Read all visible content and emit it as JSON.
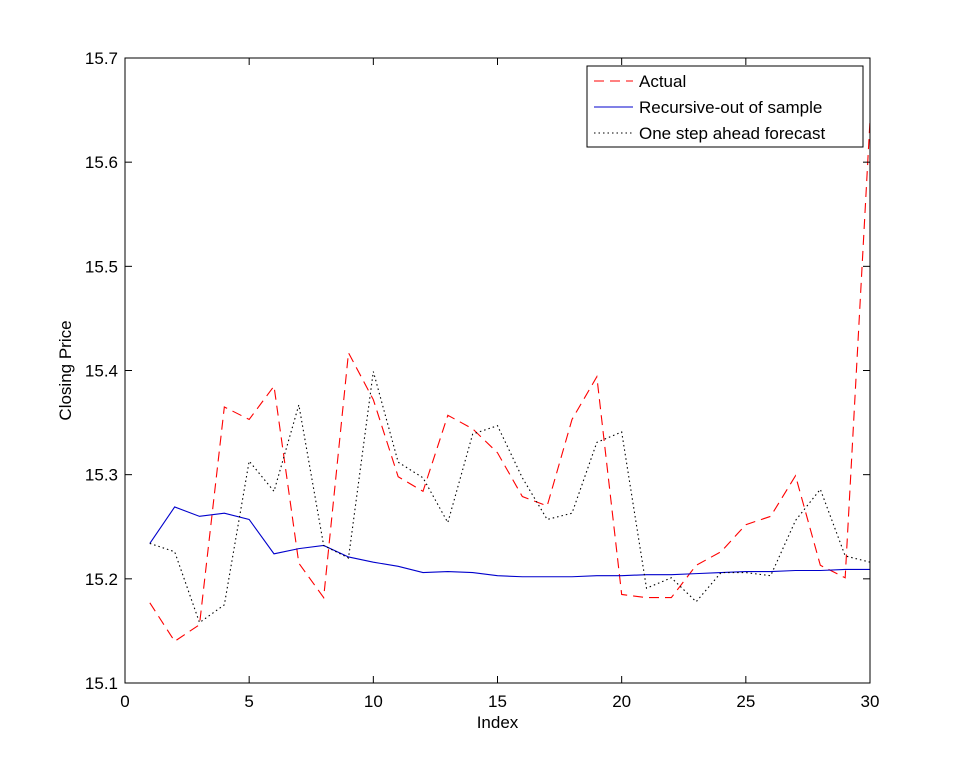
{
  "chart_data": {
    "type": "line",
    "title": "",
    "xlabel": "Index",
    "ylabel": "Closing Price",
    "xlim": [
      0,
      30
    ],
    "ylim": [
      15.1,
      15.7
    ],
    "xticks": [
      0,
      5,
      10,
      15,
      20,
      25,
      30
    ],
    "yticks": [
      15.1,
      15.2,
      15.3,
      15.4,
      15.5,
      15.6,
      15.7
    ],
    "xtick_labels": [
      "0",
      "5",
      "10",
      "15",
      "20",
      "25",
      "30"
    ],
    "ytick_labels": [
      "15.1",
      "15.2",
      "15.3",
      "15.4",
      "15.5",
      "15.6",
      "15.7"
    ],
    "grid": false,
    "legend_position": "top-right",
    "x": [
      1,
      2,
      3,
      4,
      5,
      6,
      7,
      8,
      9,
      10,
      11,
      12,
      13,
      14,
      15,
      16,
      17,
      18,
      19,
      20,
      21,
      22,
      23,
      24,
      25,
      26,
      27,
      28,
      29,
      30
    ],
    "series": [
      {
        "name": "Actual",
        "color": "#ff0000",
        "style": "dashed",
        "values": [
          15.177,
          15.14,
          15.156,
          15.365,
          15.353,
          15.385,
          15.215,
          15.182,
          15.417,
          15.372,
          15.298,
          15.284,
          15.357,
          15.344,
          15.321,
          15.279,
          15.27,
          15.353,
          15.394,
          15.185,
          15.182,
          15.182,
          15.213,
          15.226,
          15.252,
          15.26,
          15.299,
          15.213,
          15.201,
          15.64
        ]
      },
      {
        "name": "Recursive-out of sample",
        "color": "#0000cc",
        "style": "solid",
        "values": [
          15.234,
          15.269,
          15.26,
          15.263,
          15.257,
          15.224,
          15.229,
          15.232,
          15.221,
          15.216,
          15.212,
          15.206,
          15.207,
          15.206,
          15.203,
          15.202,
          15.202,
          15.202,
          15.203,
          15.203,
          15.204,
          15.204,
          15.205,
          15.206,
          15.207,
          15.207,
          15.208,
          15.208,
          15.209,
          15.209
        ]
      },
      {
        "name": "One step ahead forecast",
        "color": "#000000",
        "style": "dotted",
        "values": [
          15.234,
          15.226,
          15.158,
          15.175,
          15.313,
          15.284,
          15.367,
          15.232,
          15.22,
          15.399,
          15.312,
          15.297,
          15.254,
          15.339,
          15.347,
          15.297,
          15.257,
          15.263,
          15.331,
          15.341,
          15.191,
          15.201,
          15.178,
          15.206,
          15.206,
          15.203,
          15.256,
          15.286,
          15.222,
          15.216
        ]
      }
    ]
  }
}
